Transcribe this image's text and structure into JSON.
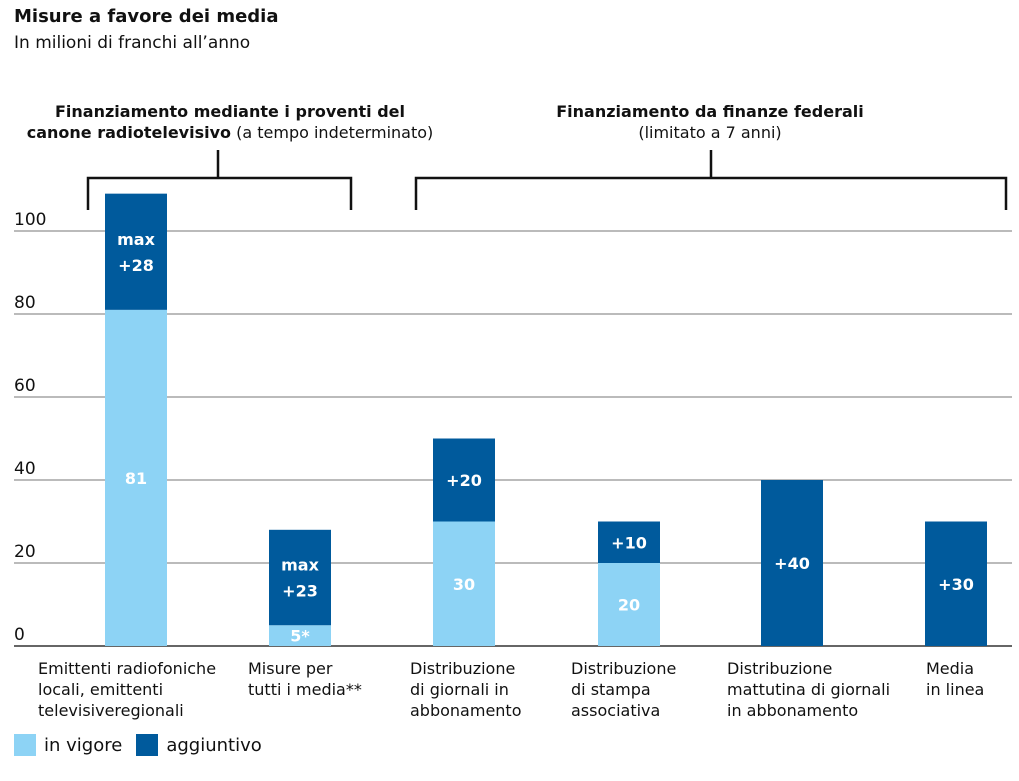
{
  "title": "Misure a favore dei media",
  "subtitle": "In milioni di franchi all’anno",
  "groups": [
    {
      "label_bold": "Finanziamento mediante i proventi del canone radiotelevisivo",
      "label_normal": "(a tempo indeterminato)"
    },
    {
      "label_bold": "Finanziamento da finanze federali",
      "label_normal": "(limitato a 7 anni)"
    }
  ],
  "legend": [
    {
      "label": "in vigore",
      "color": "#8dd3f5"
    },
    {
      "label": "aggiuntivo",
      "color": "#005a9c"
    }
  ],
  "chart_data": {
    "type": "bar",
    "stacked": true,
    "categories": [
      "Emittenti radiofoniche locali, emittenti televisiveregionali",
      "Misure per tutti i media**",
      "Distribuzione di giornali in abbonamento",
      "Distribuzione di stampa associativa",
      "Distribuzione mattutina di giornali in abbonamento",
      "Media in linea"
    ],
    "category_lines": [
      [
        "Emittenti radiofoniche",
        "locali, emittenti",
        "televisiveregionali"
      ],
      [
        "Misure per",
        "tutti i media**"
      ],
      [
        "Distribuzione",
        "di giornali in",
        "abbonamento"
      ],
      [
        "Distribuzione",
        "di stampa",
        "associativa"
      ],
      [
        "Distribuzione",
        "mattutina di giornali",
        "in abbonamento"
      ],
      [
        "Media",
        "in linea"
      ]
    ],
    "series": [
      {
        "name": "in vigore",
        "values": [
          81,
          5,
          30,
          20,
          0,
          0
        ],
        "labels": [
          "81",
          "5*",
          "30",
          "20",
          "",
          ""
        ]
      },
      {
        "name": "aggiuntivo",
        "values": [
          28,
          23,
          20,
          10,
          40,
          30
        ],
        "labels": [
          "max|+28",
          "max|+23",
          "+20",
          "+10",
          "+40",
          "+30"
        ]
      }
    ],
    "ylim": [
      0,
      100
    ],
    "yticks": [
      0,
      20,
      40,
      60,
      80,
      100
    ],
    "grid": true
  }
}
